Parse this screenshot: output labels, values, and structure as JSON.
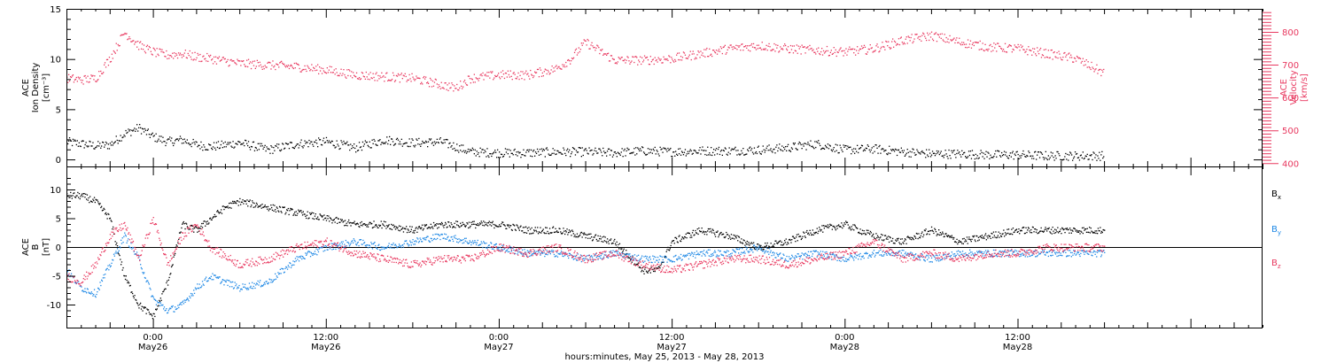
{
  "figure": {
    "xlabel": "hours:minutes, May 25, 2013 - May 28, 2013",
    "x_ticks": [
      {
        "time": "0:00",
        "date": "May26",
        "hours": 0
      },
      {
        "time": "12:00",
        "date": "May26",
        "hours": 12
      },
      {
        "time": "0:00",
        "date": "May27",
        "hours": 24
      },
      {
        "time": "12:00",
        "date": "May27",
        "hours": 36
      },
      {
        "time": "0:00",
        "date": "May28",
        "hours": 48
      },
      {
        "time": "12:00",
        "date": "May28",
        "hours": 60
      }
    ],
    "colors": {
      "black": "#000000",
      "pink": "#e8385f",
      "blue": "#1e88e5"
    }
  },
  "chart_data": [
    {
      "type": "scatter",
      "panel": "top",
      "x_units": "hours relative to May 26 0:00 UT",
      "xlim": [
        -6,
        77
      ],
      "left_axis": {
        "label_lines": [
          "ACE",
          "Ion Density",
          "[cm⁻³]"
        ],
        "ylim": [
          -0.7,
          15
        ],
        "ticks": [
          "0",
          "5",
          "10",
          "15"
        ]
      },
      "right_axis": {
        "label_lines": [
          "ACE",
          "Velocity",
          "[km/s]"
        ],
        "ylim": [
          390,
          870
        ],
        "ticks": [
          "400",
          "500",
          "600",
          "700",
          "800"
        ],
        "color": "#e8385f"
      },
      "series": [
        {
          "axis": "left",
          "color": "#000000",
          "x": [
            -6,
            -5,
            -4,
            -3,
            -2,
            -1,
            0,
            1,
            2,
            3,
            4,
            6,
            8,
            10,
            12,
            14,
            16,
            18,
            20,
            22,
            24,
            26,
            28,
            30,
            32,
            34,
            36,
            38,
            40,
            42,
            44,
            46,
            48,
            50,
            52,
            54,
            56,
            58,
            60,
            62,
            64,
            66
          ],
          "y": [
            1.8,
            1.6,
            1.4,
            1.5,
            2.6,
            3.2,
            2.3,
            1.8,
            2.0,
            1.5,
            1.3,
            1.7,
            1.0,
            1.6,
            1.8,
            1.2,
            2.0,
            1.7,
            1.8,
            0.8,
            0.7,
            0.7,
            0.8,
            0.8,
            0.7,
            0.9,
            0.8,
            0.9,
            0.9,
            1.0,
            1.2,
            1.6,
            1.0,
            1.1,
            0.8,
            0.6,
            0.6,
            0.5,
            0.5,
            0.4,
            0.4,
            0.4
          ]
        },
        {
          "axis": "right",
          "color": "#e8385f",
          "x": [
            -6,
            -5,
            -4,
            -3,
            -2,
            -1,
            0,
            1,
            2,
            3,
            4,
            6,
            8,
            10,
            12,
            14,
            16,
            18,
            20,
            21,
            22,
            24,
            26,
            28,
            29,
            30,
            32,
            34,
            36,
            38,
            40,
            42,
            44,
            46,
            48,
            50,
            52,
            54,
            56,
            58,
            60,
            62,
            64,
            66
          ],
          "y": [
            660,
            655,
            660,
            720,
            800,
            760,
            740,
            730,
            735,
            725,
            720,
            705,
            700,
            695,
            685,
            670,
            665,
            660,
            640,
            630,
            660,
            670,
            670,
            690,
            720,
            770,
            715,
            715,
            720,
            735,
            750,
            760,
            750,
            745,
            740,
            750,
            775,
            790,
            770,
            755,
            750,
            735,
            720,
            675
          ]
        }
      ]
    },
    {
      "type": "scatter",
      "panel": "bottom",
      "x_units": "hours relative to May 26 0:00 UT",
      "xlim": [
        -6,
        77
      ],
      "left_axis": {
        "label_lines": [
          "ACE",
          "B",
          "[nT]"
        ],
        "ylim": [
          -14,
          14
        ],
        "ticks": [
          "-10",
          "-5",
          "0",
          "5",
          "10"
        ]
      },
      "zero_line": true,
      "legend_placement": "right",
      "series": [
        {
          "name": "Bx",
          "color": "#000000",
          "x": [
            -6,
            -5,
            -4,
            -3,
            -2,
            -1,
            0,
            1,
            2,
            3,
            4,
            5,
            6,
            8,
            10,
            12,
            14,
            16,
            18,
            20,
            22,
            24,
            26,
            28,
            30,
            32,
            34,
            35,
            36,
            38,
            40,
            42,
            44,
            46,
            48,
            50,
            52,
            54,
            56,
            58,
            60,
            62,
            64,
            66
          ],
          "y": [
            9,
            9,
            8,
            5,
            -5,
            -10,
            -12,
            -6,
            4,
            3,
            5,
            7,
            8,
            7,
            6,
            5,
            4,
            4,
            3,
            4,
            4,
            4,
            3,
            3,
            2,
            1,
            -4,
            -4,
            1,
            3,
            2,
            0,
            1,
            3,
            4,
            2,
            1,
            3,
            1,
            2,
            3,
            3,
            3,
            3
          ]
        },
        {
          "name": "By",
          "color": "#1e88e5",
          "x": [
            -6,
            -5,
            -4,
            -3,
            -2,
            -1,
            0,
            1,
            2,
            3,
            4,
            6,
            8,
            10,
            12,
            14,
            16,
            18,
            20,
            22,
            24,
            26,
            28,
            30,
            32,
            34,
            36,
            38,
            40,
            42,
            44,
            46,
            48,
            50,
            52,
            54,
            56,
            58,
            60,
            62,
            64,
            66
          ],
          "y": [
            -4,
            -7,
            -8,
            -3,
            2,
            -2,
            -9,
            -11,
            -10,
            -7,
            -5,
            -7,
            -6,
            -2,
            0,
            1,
            0,
            1,
            2,
            1,
            0,
            -1,
            -1,
            -2,
            -1,
            -2,
            -2,
            -1,
            -1,
            0,
            -2,
            -1,
            -2,
            -1,
            -1,
            -2,
            -1,
            -1,
            -1,
            -1,
            -1,
            -1
          ]
        },
        {
          "name": "Bz",
          "color": "#e8385f",
          "x": [
            -6,
            -5,
            -4,
            -3,
            -2,
            -1,
            0,
            1,
            2,
            3,
            4,
            6,
            8,
            10,
            12,
            14,
            16,
            18,
            20,
            22,
            24,
            26,
            28,
            30,
            32,
            34,
            36,
            38,
            40,
            42,
            44,
            46,
            48,
            50,
            52,
            54,
            56,
            58,
            60,
            62,
            64,
            66
          ],
          "y": [
            -5,
            -6,
            -3,
            2,
            4,
            -2,
            5,
            -3,
            2,
            4,
            0,
            -3,
            -2,
            0,
            1,
            -1,
            -2,
            -3,
            -2,
            -2,
            0,
            -1,
            0,
            -2,
            -1,
            -3,
            -4,
            -3,
            -2,
            -2,
            -3,
            -2,
            -1,
            1,
            -2,
            -1,
            -2,
            -1,
            -1,
            0,
            0,
            0
          ]
        }
      ]
    }
  ]
}
